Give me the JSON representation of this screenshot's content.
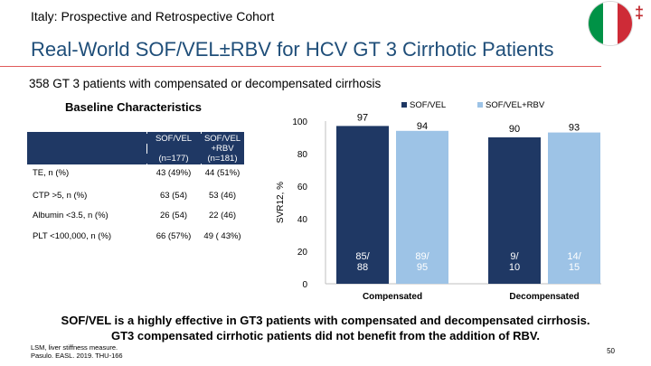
{
  "header": {
    "supertitle": "Italy: Prospective and Retrospective Cohort",
    "title": "Real-World SOF/VEL±RBV for HCV GT 3 Cirrhotic Patients",
    "dagger": "‡",
    "subtitle": "358 GT 3 patients with compensated or decompensated cirrhosis"
  },
  "flag": {
    "colors": [
      "#009246",
      "#ffffff",
      "#ce2b37"
    ]
  },
  "table": {
    "title": "Baseline Characteristics",
    "col1": {
      "name": "SOF/VEL",
      "n": "(n=177)"
    },
    "col2": {
      "line1": "SOF/VEL",
      "line2": "+RBV",
      "n": "(n=181)"
    },
    "rows": [
      {
        "label": "TE, n (%)",
        "a": "43 (49%)",
        "b": "44 (51%)"
      },
      {
        "label": "CTP >5, n (%)",
        "a": "63 (54)",
        "b": "53 (46)"
      },
      {
        "label": "Albumin <3.5, n (%)",
        "a": "26 (54)",
        "b": "22 (46)"
      },
      {
        "label": "PLT <100,000, n (%)",
        "a": "66 (57%)",
        "b": "49 ( 43%)"
      }
    ]
  },
  "chart_data": {
    "type": "bar",
    "ylabel": "SVR12, %",
    "ylim": [
      0,
      100
    ],
    "yticks": [
      0,
      20,
      40,
      60,
      80,
      100
    ],
    "categories": [
      "Compensated",
      "Decompensated"
    ],
    "series": [
      {
        "name": "SOF/VEL",
        "color": "#1f3864",
        "values": [
          97,
          90
        ],
        "labels": [
          "97",
          "90"
        ],
        "counts": [
          "85/\n88",
          "9/\n10"
        ]
      },
      {
        "name": "SOF/VEL+RBV",
        "color": "#9dc3e6",
        "values": [
          94,
          93
        ],
        "labels": [
          "94",
          "93"
        ],
        "counts": [
          "89/\n95",
          "14/\n15"
        ]
      }
    ]
  },
  "summary": {
    "line1": "SOF/VEL is a highly effective in GT3 patients with compensated and decompensated cirrhosis.",
    "line2": "GT3 compensated cirrhotic patients did not benefit from the addition of RBV."
  },
  "footer": {
    "line1": "LSM, liver stiffness measure.",
    "line2": "Pasulo. EASL. 2019. THU-166",
    "page": "50"
  }
}
